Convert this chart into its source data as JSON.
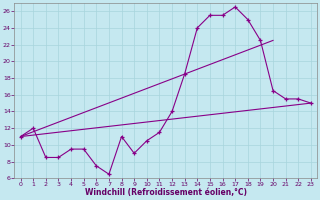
{
  "xlabel": "Windchill (Refroidissement éolien,°C)",
  "background_color": "#c5e8f0",
  "grid_color": "#a8d5dd",
  "line_color": "#880088",
  "xlim": [
    -0.5,
    23.5
  ],
  "ylim": [
    6,
    27
  ],
  "yticks": [
    6,
    8,
    10,
    12,
    14,
    16,
    18,
    20,
    22,
    24,
    26
  ],
  "xticks": [
    0,
    1,
    2,
    3,
    4,
    5,
    6,
    7,
    8,
    9,
    10,
    11,
    12,
    13,
    14,
    15,
    16,
    17,
    18,
    19,
    20,
    21,
    22,
    23
  ],
  "line1_x": [
    0,
    1,
    2,
    3,
    4,
    5,
    6,
    7,
    8,
    9,
    10,
    11,
    12,
    13,
    14,
    15,
    16,
    17,
    18,
    19,
    20,
    21,
    22,
    23
  ],
  "line1_y": [
    11.0,
    12.0,
    8.5,
    8.5,
    9.5,
    9.5,
    7.5,
    6.5,
    11.0,
    9.0,
    10.5,
    11.5,
    14.0,
    18.5,
    24.0,
    25.5,
    25.5,
    26.5,
    25.0,
    22.5,
    16.5,
    15.5,
    15.5,
    15.0
  ],
  "line3_x": [
    0,
    23
  ],
  "line3_y": [
    11.0,
    15.0
  ],
  "line4_x": [
    0,
    20
  ],
  "line4_y": [
    11.0,
    22.5
  ]
}
